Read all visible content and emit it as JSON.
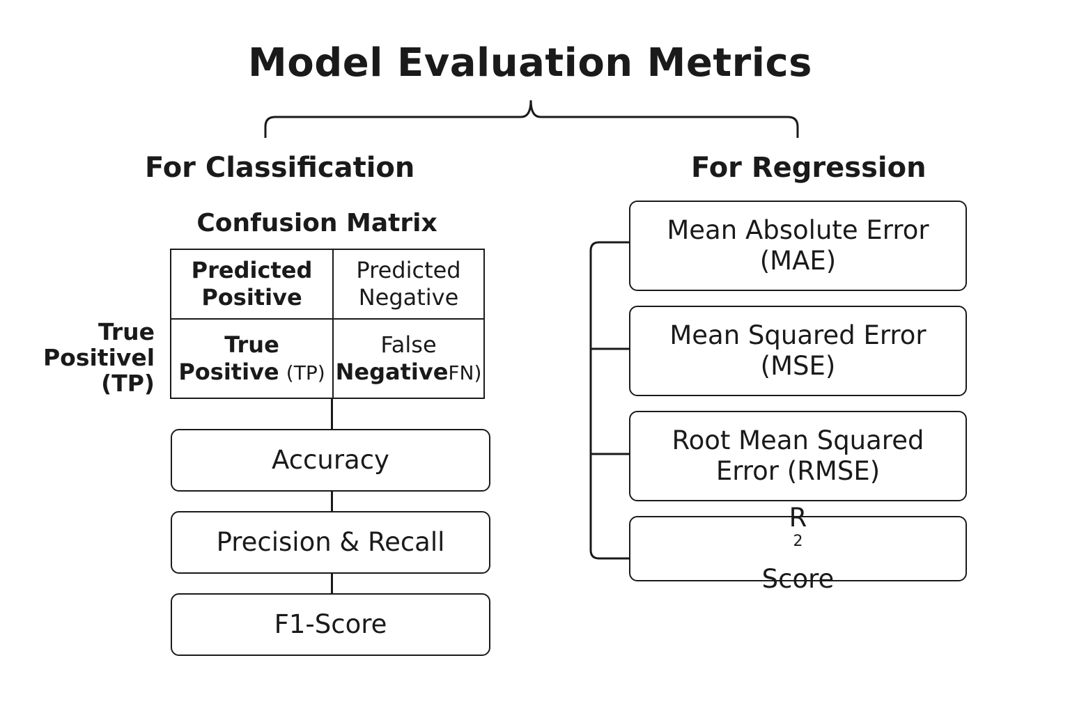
{
  "title": "Model Evaluation Metrics",
  "classification": {
    "heading": "For Classification",
    "matrix_heading": "Confusion Matrix",
    "row_label": [
      "True",
      "Positivel",
      "(TP)"
    ],
    "matrix": {
      "header_left": [
        "Predicted",
        "Positive"
      ],
      "header_right": [
        "Predicted",
        "Negative"
      ],
      "cell_tp": {
        "line1": "True",
        "line2_bold": "Positive",
        "line2_light": "(TP)"
      },
      "cell_fn": {
        "line1": "False",
        "line2_bold": "Negative",
        "line2_light": "FN)"
      }
    },
    "metrics": [
      "Accuracy",
      "Precision & Recall",
      "F1-Score"
    ]
  },
  "regression": {
    "heading": "For Regression",
    "metrics": [
      [
        "Mean Absolute Error",
        "(MAE)"
      ],
      [
        "Mean Squared Error",
        "(MSE)"
      ],
      [
        "Root Mean Squared",
        "Error (RMSE)"
      ]
    ],
    "r2": {
      "base": "R",
      "superscript": "2",
      "suffix": " Score"
    }
  },
  "colors": {
    "stroke": "#1a1a1a",
    "background": "#ffffff"
  }
}
